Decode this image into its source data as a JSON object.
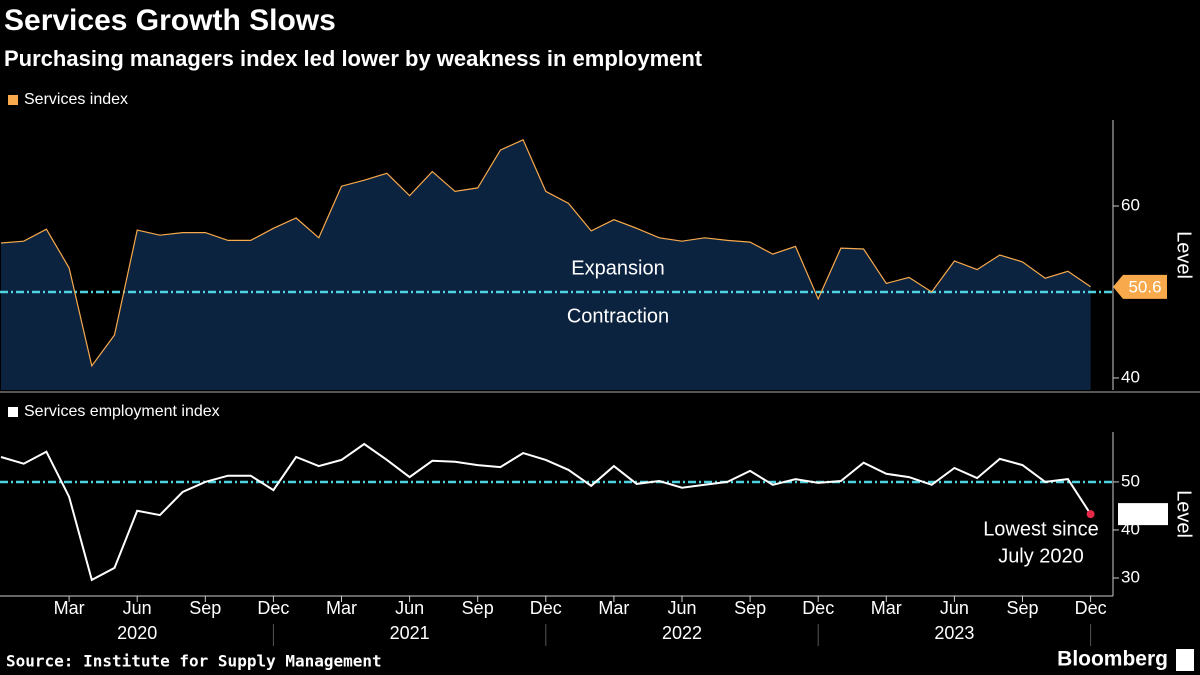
{
  "title": "Services Growth Slows",
  "subtitle": "Purchasing managers index led lower by weakness in employment",
  "source": "Source: Institute for Supply Management",
  "brand": "Bloomberg",
  "chart_data": [
    {
      "type": "area",
      "ylabel": "Level",
      "ylim": [
        38.6,
        70
      ],
      "yticks": [
        40,
        60
      ],
      "threshold": 50,
      "threshold_color": "#4fd1e0",
      "fill": "#0c2340",
      "annotations": [
        {
          "text": "Expansion",
          "color": "#8cc63f"
        },
        {
          "text": "Contraction",
          "color": "#e8294a"
        }
      ],
      "series": [
        {
          "name": "Services index",
          "color": "#f7a94b",
          "values": [
            55.7,
            55.9,
            57.3,
            52.8,
            41.4,
            45.0,
            57.2,
            56.6,
            56.9,
            56.9,
            56.0,
            56.0,
            57.4,
            58.6,
            56.3,
            62.3,
            63.0,
            63.8,
            61.2,
            64.0,
            61.7,
            62.1,
            66.5,
            67.7,
            61.7,
            60.3,
            57.1,
            58.4,
            57.4,
            56.3,
            55.9,
            56.3,
            56.0,
            55.8,
            54.4,
            55.3,
            49.2,
            55.1,
            55.0,
            51.0,
            51.7,
            50.0,
            53.6,
            52.6,
            54.3,
            53.5,
            51.6,
            52.4,
            50.6
          ]
        }
      ]
    },
    {
      "type": "line",
      "ylabel": "Level",
      "ylim": [
        26.25,
        60.4
      ],
      "yticks": [
        30,
        40,
        50
      ],
      "threshold": 50,
      "threshold_color": "#4fd1e0",
      "annotations": [
        {
          "text": "Lowest since",
          "color": "#e8294a"
        },
        {
          "text": "July 2020",
          "color": "#e8294a"
        }
      ],
      "categories": [
        null,
        null,
        null,
        "Mar",
        null,
        null,
        "Jun",
        null,
        null,
        "Sep",
        null,
        null,
        "Dec",
        null,
        null,
        "Mar",
        null,
        null,
        "Jun",
        null,
        null,
        "Sep",
        null,
        null,
        "Dec",
        null,
        null,
        "Mar",
        null,
        null,
        "Jun",
        null,
        null,
        "Sep",
        null,
        null,
        "Dec",
        null,
        null,
        "Mar",
        null,
        null,
        "Jun",
        null,
        null,
        "Sep",
        null,
        null,
        "Dec"
      ],
      "years": [
        "2020",
        "2021",
        "2022",
        "2023"
      ],
      "series": [
        {
          "name": "Services employment index",
          "color": "#ffffff",
          "values": [
            55.2,
            53.8,
            56.3,
            46.9,
            29.6,
            32.1,
            44.0,
            43.1,
            47.9,
            50.0,
            51.3,
            51.3,
            48.3,
            55.2,
            53.3,
            54.6,
            57.9,
            54.6,
            51.0,
            54.4,
            54.2,
            53.5,
            53.1,
            56.0,
            54.6,
            52.5,
            49.2,
            53.3,
            49.6,
            50.2,
            48.8,
            49.4,
            50.0,
            52.3,
            49.4,
            50.6,
            49.8,
            50.2,
            54.0,
            51.7,
            51.0,
            49.4,
            52.9,
            50.8,
            54.8,
            53.5,
            50.0,
            50.6,
            43.3
          ]
        }
      ]
    }
  ]
}
